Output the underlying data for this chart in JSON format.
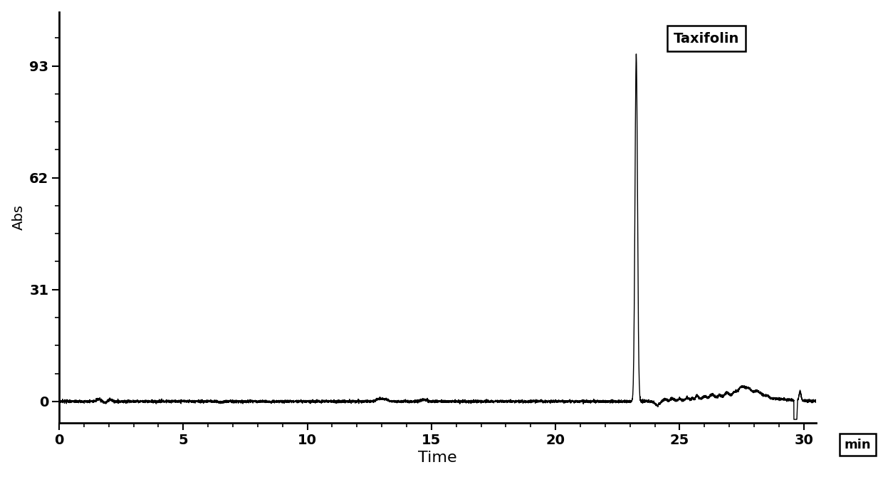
{
  "title": "",
  "xlabel": "Time",
  "ylabel": "Abs",
  "xlim": [
    0,
    30.5
  ],
  "ylim": [
    -6,
    108
  ],
  "xticks": [
    0,
    5,
    10,
    15,
    20,
    25,
    30
  ],
  "yticks": [
    0,
    31,
    62,
    93
  ],
  "legend_label": "Taxifolin",
  "line_color": "#000000",
  "background_color": "#ffffff",
  "peak_time": 23.25,
  "peak_height": 96,
  "min_label": "min",
  "minor_ytick_interval": 7.75,
  "minor_xtick_interval": 1
}
